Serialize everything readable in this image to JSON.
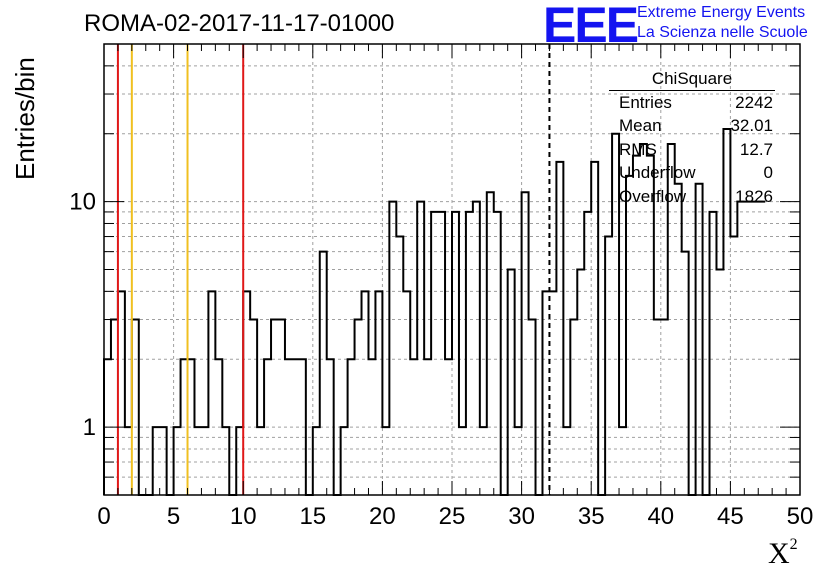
{
  "header": {
    "title": "ROMA-02-2017-11-17-01000",
    "logo_text": "EEE",
    "logo_line1": "Extreme Energy Events",
    "logo_line2": "La Scienza nelle Scuole"
  },
  "stats_box": {
    "title": "ChiSquare",
    "rows": [
      {
        "label": "Entries",
        "value": "2242"
      },
      {
        "label": "Mean",
        "value": "32.01"
      },
      {
        "label": "RMS",
        "value": "12.7"
      },
      {
        "label": "Underflow",
        "value": "0"
      },
      {
        "label": "Overflow",
        "value": "1826"
      }
    ]
  },
  "chart_data": {
    "type": "histogram",
    "title": "ROMA-02-2017-11-17-01000",
    "xlabel": "X",
    "xlabel_superscript": "2",
    "ylabel": "Entries/bin",
    "xlim": [
      0,
      50
    ],
    "ylim": [
      0.5,
      50
    ],
    "y_scale": "log",
    "grid": true,
    "bin_width": 0.5,
    "x_ticks": [
      "0",
      "5",
      "10",
      "15",
      "20",
      "25",
      "30",
      "35",
      "40",
      "45",
      "50"
    ],
    "y_ticks": [
      "1",
      "10"
    ],
    "bin_values": [
      2,
      3,
      4,
      1,
      3,
      0,
      0,
      1,
      1,
      0,
      1,
      2,
      2,
      1,
      1,
      4,
      2,
      1,
      0,
      1,
      4,
      3,
      1,
      2,
      3,
      3,
      2,
      2,
      2,
      0,
      1,
      6,
      2,
      0,
      1,
      2,
      3,
      4,
      2,
      4,
      1,
      10,
      7,
      4,
      2,
      10,
      2,
      9,
      9,
      2,
      9,
      1,
      9,
      10,
      1,
      11,
      9,
      0,
      5,
      1,
      11,
      3,
      0,
      4,
      4,
      15,
      1,
      3,
      5,
      9,
      15,
      0,
      7,
      20,
      1,
      13,
      16,
      18,
      16,
      3,
      3,
      18,
      12,
      6,
      0,
      12,
      0,
      9,
      5,
      21,
      7,
      10,
      10
    ],
    "overflow_bin_values": [
      10,
      10
    ],
    "vertical_lines": [
      {
        "x": 1,
        "color": "#e01818",
        "style": "solid"
      },
      {
        "x": 2,
        "color": "#f0c020",
        "style": "solid"
      },
      {
        "x": 6,
        "color": "#f0c020",
        "style": "solid"
      },
      {
        "x": 10,
        "color": "#e01818",
        "style": "solid"
      },
      {
        "x": 32,
        "color": "#000000",
        "style": "dashed"
      }
    ]
  }
}
